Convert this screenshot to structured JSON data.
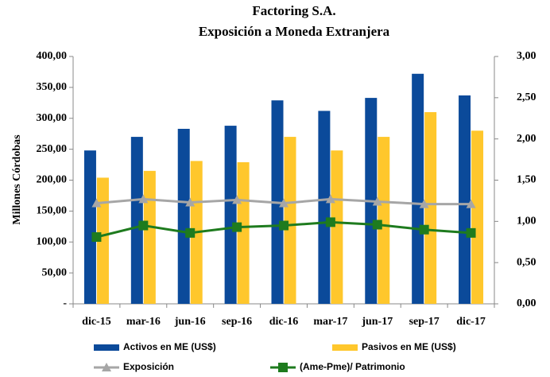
{
  "chart_data": {
    "type": "bar",
    "title": "Factoring S.A.",
    "subtitle": "Exposición a Moneda Extranjera",
    "y_label": "Millones Córdobas",
    "categories": [
      "dic-15",
      "mar-16",
      "jun-16",
      "sep-16",
      "dic-16",
      "mar-17",
      "jun-17",
      "sep-17",
      "dic-17"
    ],
    "series": [
      {
        "name": "Activos en ME (US$)",
        "type": "bar",
        "color": "#0b4a9a",
        "values": [
          248,
          270,
          283,
          288,
          329,
          312,
          333,
          372,
          337
        ]
      },
      {
        "name": "Pasivos en ME (US$)",
        "type": "bar",
        "color": "#ffc72c",
        "values": [
          204,
          215,
          231,
          229,
          270,
          248,
          270,
          310,
          280
        ]
      },
      {
        "name": "Exposición",
        "type": "line",
        "axis": "y2",
        "marker": "triangle",
        "color": "#a6a6a6",
        "values": [
          1.22,
          1.27,
          1.23,
          1.26,
          1.22,
          1.27,
          1.24,
          1.21,
          1.21
        ]
      },
      {
        "name": "(Ame-Pme)/ Patrimonio",
        "type": "line",
        "axis": "y2",
        "marker": "square",
        "color": "#1e7b1e",
        "values": [
          0.81,
          0.95,
          0.86,
          0.93,
          0.95,
          0.99,
          0.96,
          0.9,
          0.86
        ]
      }
    ],
    "ylim": [
      0,
      400
    ],
    "yticks": [
      {
        "value": 0,
        "label": "-"
      },
      {
        "value": 50,
        "label": "50,00"
      },
      {
        "value": 100,
        "label": "100,00"
      },
      {
        "value": 150,
        "label": "150,00"
      },
      {
        "value": 200,
        "label": "200,00"
      },
      {
        "value": 250,
        "label": "250,00"
      },
      {
        "value": 300,
        "label": "300,00"
      },
      {
        "value": 350,
        "label": "350,00"
      },
      {
        "value": 400,
        "label": "400,00"
      }
    ],
    "y2lim": [
      0,
      3
    ],
    "y2ticks": [
      {
        "value": 0,
        "label": "0,00"
      },
      {
        "value": 0.5,
        "label": "0,50"
      },
      {
        "value": 1,
        "label": "1,00"
      },
      {
        "value": 1.5,
        "label": "1,50"
      },
      {
        "value": 2,
        "label": "2,00"
      },
      {
        "value": 2.5,
        "label": "2,50"
      },
      {
        "value": 3,
        "label": "3,00"
      }
    ],
    "grid": false,
    "legend": "bottom"
  }
}
